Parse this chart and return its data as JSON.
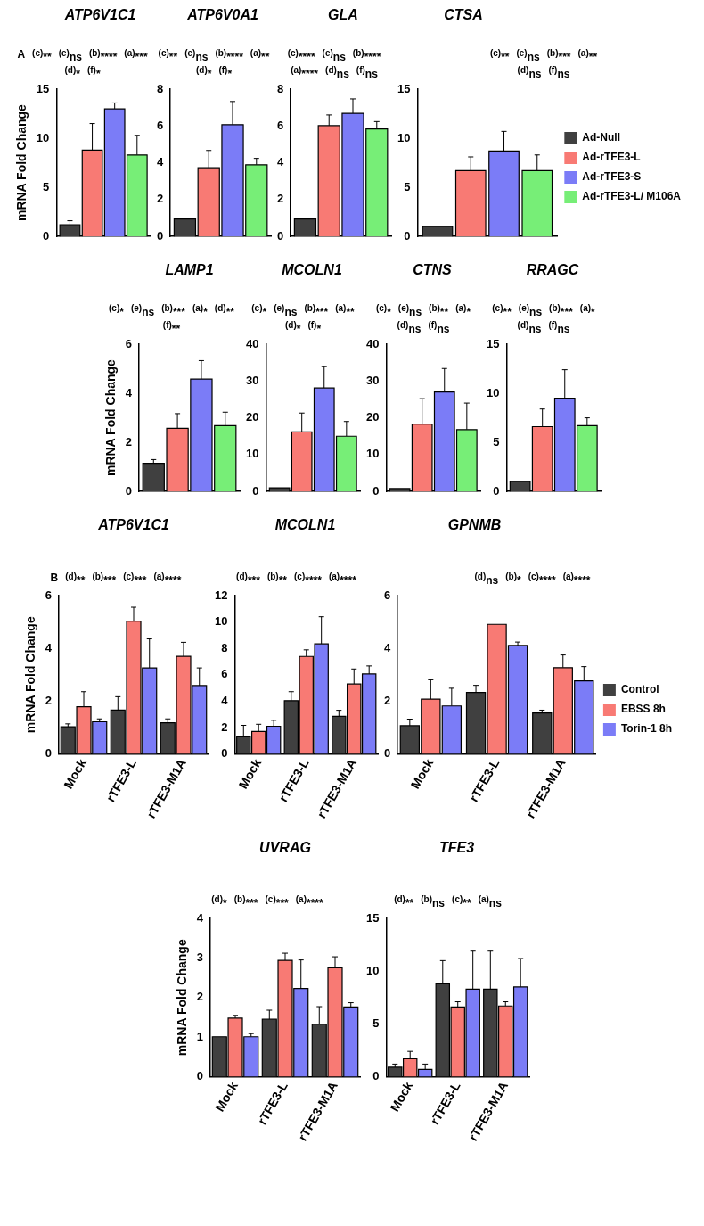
{
  "chart_data": [
    {
      "type": "bar",
      "title": "ATP6V1C1",
      "ylabel": "mRNA Fold Change",
      "categories": [
        null
      ],
      "ylim": [
        0,
        15
      ],
      "yticks": [
        0,
        5,
        10,
        15
      ],
      "tick_labels": "y",
      "annotations": [
        "A",
        "$^{(c)}$**",
        "$^{(e)}$ns",
        "$^{(b)}$****",
        "$^{(a)}$***",
        "$^{(d)}$*",
        "$^{(f)}$*"
      ],
      "series": [
        {
          "color": "#404040",
          "values": [
            1.2
          ],
          "errors": [
            [
              1.2,
              1.6
            ]
          ]
        },
        {
          "color": "#f87a74",
          "values": [
            8.8
          ],
          "errors": [
            [
              8.8,
              11.5
            ]
          ]
        },
        {
          "color": "#7b7cf7",
          "values": [
            13.0
          ],
          "errors": [
            [
              13.0,
              13.6
            ]
          ]
        },
        {
          "color": "#77ee77",
          "values": [
            8.3
          ],
          "errors": [
            [
              8.3,
              10.3
            ]
          ]
        }
      ]
    },
    {
      "type": "bar",
      "title": "ATP6V0A1",
      "categories": [
        null
      ],
      "ylim": [
        0,
        8
      ],
      "yticks": [
        0,
        2,
        4,
        6,
        8
      ],
      "tick_labels": "y",
      "annotations": [
        "$^{(c)}$**",
        "$^{(e)}$ns",
        "$^{(b)}$****",
        "$^{(a)}$**",
        "$^{(d)}$*",
        "$^{(f)}$*"
      ],
      "series": [
        {
          "color": "#404040",
          "values": [
            0.95
          ],
          "errors": [
            null
          ]
        },
        {
          "color": "#f87a74",
          "values": [
            3.73
          ],
          "errors": [
            [
              3.73,
              4.67
            ]
          ]
        },
        {
          "color": "#7b7cf7",
          "values": [
            6.07
          ],
          "errors": [
            [
              6.07,
              7.33
            ]
          ]
        },
        {
          "color": "#77ee77",
          "values": [
            3.89
          ],
          "errors": [
            [
              3.89,
              4.24
            ]
          ]
        }
      ]
    },
    {
      "type": "bar",
      "title": "GLA",
      "categories": [
        null
      ],
      "ylim": [
        0,
        8
      ],
      "yticks": [
        0,
        2,
        4,
        6,
        8
      ],
      "tick_labels": "y",
      "annotations": [
        "$^{(c)}$****",
        "$^{(e)}$ns",
        "$^{(b)}$****",
        "$^{(a)}$****",
        "$^{(d)}$ns",
        "$^{(f)}$ns"
      ],
      "series": [
        {
          "color": "#404040",
          "values": [
            0.95
          ],
          "errors": [
            null
          ]
        },
        {
          "color": "#f87a74",
          "values": [
            6.02
          ],
          "errors": [
            [
              6.02,
              6.6
            ]
          ]
        },
        {
          "color": "#7b7cf7",
          "values": [
            6.69
          ],
          "errors": [
            [
              6.69,
              7.47
            ]
          ]
        },
        {
          "color": "#77ee77",
          "values": [
            5.84
          ],
          "errors": [
            [
              5.84,
              6.24
            ]
          ]
        }
      ]
    },
    {
      "type": "bar",
      "title": "CTSA",
      "categories": [
        null
      ],
      "ylim": [
        0,
        15
      ],
      "yticks": [
        0,
        5,
        10,
        15
      ],
      "tick_labels": "y",
      "legend": "right",
      "annotations": [
        "$^{(c)}$**",
        "$^{(e)}$ns",
        "$^{(b)}$***",
        "$^{(a)}$**",
        "$^{(d)}$ns",
        "$^{(f)}$ns"
      ],
      "series": [
        {
          "name": "Ad-Null",
          "color": "#404040",
          "values": [
            1.0
          ],
          "errors": [
            null
          ]
        },
        {
          "name": "Ad-rTFE3-L",
          "color": "#f87a74",
          "values": [
            6.7
          ],
          "errors": [
            [
              6.7,
              8.1
            ]
          ]
        },
        {
          "name": "Ad-rTFE3-S",
          "color": "#7b7cf7",
          "values": [
            8.7
          ],
          "errors": [
            [
              8.7,
              10.7
            ]
          ]
        },
        {
          "name": "Ad-rTFE3-L/ M106A",
          "color": "#77ee77",
          "values": [
            6.7
          ],
          "errors": [
            [
              6.7,
              8.3
            ]
          ]
        }
      ]
    },
    {
      "type": "bar",
      "title": "LAMP1",
      "ylabel": "mRNA Fold Change",
      "categories": [
        null
      ],
      "ylim": [
        0,
        6
      ],
      "yticks": [
        0,
        2,
        4,
        6
      ],
      "tick_labels": "y",
      "annotations": [
        "$^{(c)}$*",
        "$^{(e)}$ns",
        "$^{(b)}$***",
        "$^{(a)}$*",
        "$^{(d)}$**",
        "$^{(f)}$**"
      ],
      "series": [
        {
          "color": "#404040",
          "values": [
            1.15
          ],
          "errors": [
            [
              1.15,
              1.3
            ]
          ]
        },
        {
          "color": "#f87a74",
          "values": [
            2.57
          ],
          "errors": [
            [
              2.57,
              3.17
            ]
          ]
        },
        {
          "color": "#7b7cf7",
          "values": [
            4.58
          ],
          "errors": [
            [
              4.58,
              5.33
            ]
          ]
        },
        {
          "color": "#77ee77",
          "values": [
            2.68
          ],
          "errors": [
            [
              2.68,
              3.23
            ]
          ]
        }
      ]
    },
    {
      "type": "bar",
      "title": "MCOLN1",
      "categories": [
        null
      ],
      "ylim": [
        0,
        40
      ],
      "yticks": [
        0,
        10,
        20,
        30,
        40
      ],
      "tick_labels": "y",
      "annotations": [
        "$^{(c)}$*",
        "$^{(e)}$ns",
        "$^{(b)}$***",
        "$^{(a)}$**",
        "$^{(d)}$*",
        "$^{(f)}$*"
      ],
      "series": [
        {
          "color": "#404040",
          "values": [
            1.0
          ],
          "errors": [
            null
          ]
        },
        {
          "color": "#f87a74",
          "values": [
            16.2
          ],
          "errors": [
            [
              16.2,
              21.3
            ]
          ]
        },
        {
          "color": "#7b7cf7",
          "values": [
            28.1
          ],
          "errors": [
            [
              28.1,
              33.9
            ]
          ]
        },
        {
          "color": "#77ee77",
          "values": [
            15.0
          ],
          "errors": [
            [
              15.0,
              19.0
            ]
          ]
        }
      ]
    },
    {
      "type": "bar",
      "title": "CTNS",
      "categories": [
        null
      ],
      "ylim": [
        0,
        40
      ],
      "yticks": [
        0,
        10,
        20,
        30,
        40
      ],
      "tick_labels": "y",
      "annotations": [
        "$^{(c)}$*",
        "$^{(e)}$ns",
        "$^{(b)}$**",
        "$^{(a)}$*",
        "$^{(d)}$ns",
        "$^{(f)}$ns"
      ],
      "series": [
        {
          "color": "#404040",
          "values": [
            0.8
          ],
          "errors": [
            null
          ]
        },
        {
          "color": "#f87a74",
          "values": [
            18.3
          ],
          "errors": [
            [
              18.3,
              25.2
            ]
          ]
        },
        {
          "color": "#7b7cf7",
          "values": [
            27.0
          ],
          "errors": [
            [
              27.0,
              33.4
            ]
          ]
        },
        {
          "color": "#77ee77",
          "values": [
            16.8
          ],
          "errors": [
            [
              16.8,
              24.0
            ]
          ]
        }
      ]
    },
    {
      "type": "bar",
      "title": "RRAGC",
      "categories": [
        null
      ],
      "ylim": [
        0,
        15
      ],
      "yticks": [
        0,
        5,
        10,
        15
      ],
      "tick_labels": "y",
      "annotations": [
        "$^{(c)}$**",
        "$^{(e)}$ns",
        "$^{(b)}$***",
        "$^{(a)}$*",
        "$^{(d)}$ns",
        "$^{(f)}$ns"
      ],
      "series": [
        {
          "color": "#404040",
          "values": [
            1.0
          ],
          "errors": [
            null
          ]
        },
        {
          "color": "#f87a74",
          "values": [
            6.6
          ],
          "errors": [
            [
              6.6,
              8.4
            ]
          ]
        },
        {
          "color": "#7b7cf7",
          "values": [
            9.5
          ],
          "errors": [
            [
              9.5,
              12.4
            ]
          ]
        },
        {
          "color": "#77ee77",
          "values": [
            6.7
          ],
          "errors": [
            [
              6.7,
              7.5
            ]
          ]
        }
      ]
    },
    {
      "type": "bar",
      "title": "ATP6V1C1",
      "ylabel": "mRNA Fold Change",
      "categories": [
        "Mock",
        "rTFE3-L",
        "rTFE3-M1A"
      ],
      "ylim": [
        0,
        6
      ],
      "yticks": [
        0,
        2,
        4,
        6
      ],
      "annotations": [
        "B",
        "$^{(d)}$**",
        "$^{(b)}$***",
        "$^{(c)}$***",
        "$^{(a)}$****"
      ],
      "series": [
        {
          "color": "#404040",
          "values": [
            1.03,
            1.66,
            1.18
          ],
          "errors": [
            [
              1.03,
              1.14
            ],
            [
              1.66,
              2.17
            ],
            [
              1.18,
              1.33
            ]
          ]
        },
        {
          "color": "#f87a74",
          "values": [
            1.79,
            5.03,
            3.7
          ],
          "errors": [
            [
              1.79,
              2.36
            ],
            [
              5.03,
              5.56
            ],
            [
              3.7,
              4.23
            ]
          ]
        },
        {
          "color": "#7b7cf7",
          "values": [
            1.22,
            3.26,
            2.59
          ],
          "errors": [
            [
              1.22,
              1.33
            ],
            [
              3.26,
              4.36
            ],
            [
              2.59,
              3.26
            ]
          ]
        }
      ]
    },
    {
      "type": "bar",
      "title": "MCOLN1",
      "categories": [
        "Mock",
        "rTFE3-L",
        "rTFE3-M1A"
      ],
      "ylim": [
        0,
        12
      ],
      "yticks": [
        0,
        2,
        4,
        6,
        8,
        10,
        12
      ],
      "annotations": [
        "$^{(d)}$***",
        "$^{(b)}$**",
        "$^{(c)}$****",
        "$^{(a)}$****"
      ],
      "series": [
        {
          "color": "#404040",
          "values": [
            1.3,
            4.04,
            2.86
          ],
          "errors": [
            [
              1.3,
              2.17
            ],
            [
              4.04,
              4.72
            ],
            [
              2.86,
              3.31
            ]
          ]
        },
        {
          "color": "#f87a74",
          "values": [
            1.71,
            7.39,
            5.3
          ],
          "errors": [
            [
              1.71,
              2.25
            ],
            [
              7.39,
              7.89
            ],
            [
              5.3,
              6.44
            ]
          ]
        },
        {
          "color": "#7b7cf7",
          "values": [
            2.1,
            8.34,
            6.06
          ],
          "errors": [
            [
              2.1,
              2.55
            ],
            [
              8.34,
              10.4
            ],
            [
              6.06,
              6.67
            ]
          ]
        }
      ]
    },
    {
      "type": "bar",
      "title": "GPNMB",
      "categories": [
        "Mock",
        "rTFE3-L",
        "rTFE3-M1A"
      ],
      "ylim": [
        0,
        6
      ],
      "yticks": [
        0,
        2,
        4,
        6
      ],
      "legend": "right",
      "annotations": [
        "$^{(d)}$ns",
        "$^{(b)}$*",
        "$^{(c)}$****",
        "$^{(a)}$****"
      ],
      "series": [
        {
          "name": "Control",
          "color": "#404040",
          "values": [
            1.07,
            2.33,
            1.55
          ],
          "errors": [
            [
              1.07,
              1.32
            ],
            [
              2.33,
              2.6
            ],
            [
              1.55,
              1.66
            ]
          ]
        },
        {
          "name": "EBSS 8h",
          "color": "#f87a74",
          "values": [
            2.08,
            4.91,
            3.27
          ],
          "errors": [
            [
              2.08,
              2.81
            ],
            null,
            [
              3.27,
              3.75
            ]
          ]
        },
        {
          "name": "Torin-1 8h",
          "color": "#7b7cf7",
          "values": [
            1.82,
            4.11,
            2.77
          ],
          "errors": [
            [
              1.82,
              2.49
            ],
            [
              4.11,
              4.24
            ],
            [
              2.77,
              3.31
            ]
          ]
        }
      ]
    },
    {
      "type": "bar",
      "title": "UVRAG",
      "ylabel": "mRNA Fold Change",
      "categories": [
        "Mock",
        "rTFE3-L",
        "rTFE3-M1A"
      ],
      "ylim": [
        0,
        4
      ],
      "yticks": [
        0,
        1,
        2,
        3,
        4
      ],
      "annotations": [
        "$^{(d)}$*",
        "$^{(b)}$***",
        "$^{(c)}$***",
        "$^{(a)}$****"
      ],
      "series": [
        {
          "color": "#404040",
          "values": [
            1.01,
            1.45,
            1.33
          ],
          "errors": [
            null,
            [
              1.45,
              1.68
            ],
            [
              1.33,
              1.77
            ]
          ]
        },
        {
          "color": "#f87a74",
          "values": [
            1.48,
            2.94,
            2.75
          ],
          "errors": [
            [
              1.48,
              1.55
            ],
            [
              2.94,
              3.12
            ],
            [
              2.75,
              3.03
            ]
          ]
        },
        {
          "color": "#7b7cf7",
          "values": [
            1.01,
            2.23,
            1.76
          ],
          "errors": [
            [
              1.01,
              1.09
            ],
            [
              2.23,
              2.95
            ],
            [
              1.76,
              1.87
            ]
          ]
        }
      ]
    },
    {
      "type": "bar",
      "title": "TFE3",
      "categories": [
        "Mock",
        "rTFE3-L",
        "rTFE3-M1A"
      ],
      "ylim": [
        0,
        15
      ],
      "yticks": [
        0,
        5,
        10,
        15
      ],
      "annotations": [
        "$^{(d)}$**",
        "$^{(b)}$ns",
        "$^{(c)}$**",
        "$^{(a)}$ns"
      ],
      "series": [
        {
          "color": "#404040",
          "values": [
            0.9,
            8.8,
            8.3
          ],
          "errors": [
            [
              0.9,
              1.2
            ],
            [
              8.8,
              11.0
            ],
            [
              8.3,
              11.9
            ]
          ]
        },
        {
          "color": "#f87a74",
          "values": [
            1.7,
            6.6,
            6.7
          ],
          "errors": [
            [
              1.7,
              2.4
            ],
            [
              6.6,
              7.1
            ],
            [
              6.7,
              7.1
            ]
          ]
        },
        {
          "color": "#7b7cf7",
          "values": [
            0.7,
            8.3,
            8.5
          ],
          "errors": [
            [
              0.7,
              1.2
            ],
            [
              8.3,
              11.9
            ],
            [
              8.5,
              11.2
            ]
          ]
        }
      ]
    }
  ]
}
